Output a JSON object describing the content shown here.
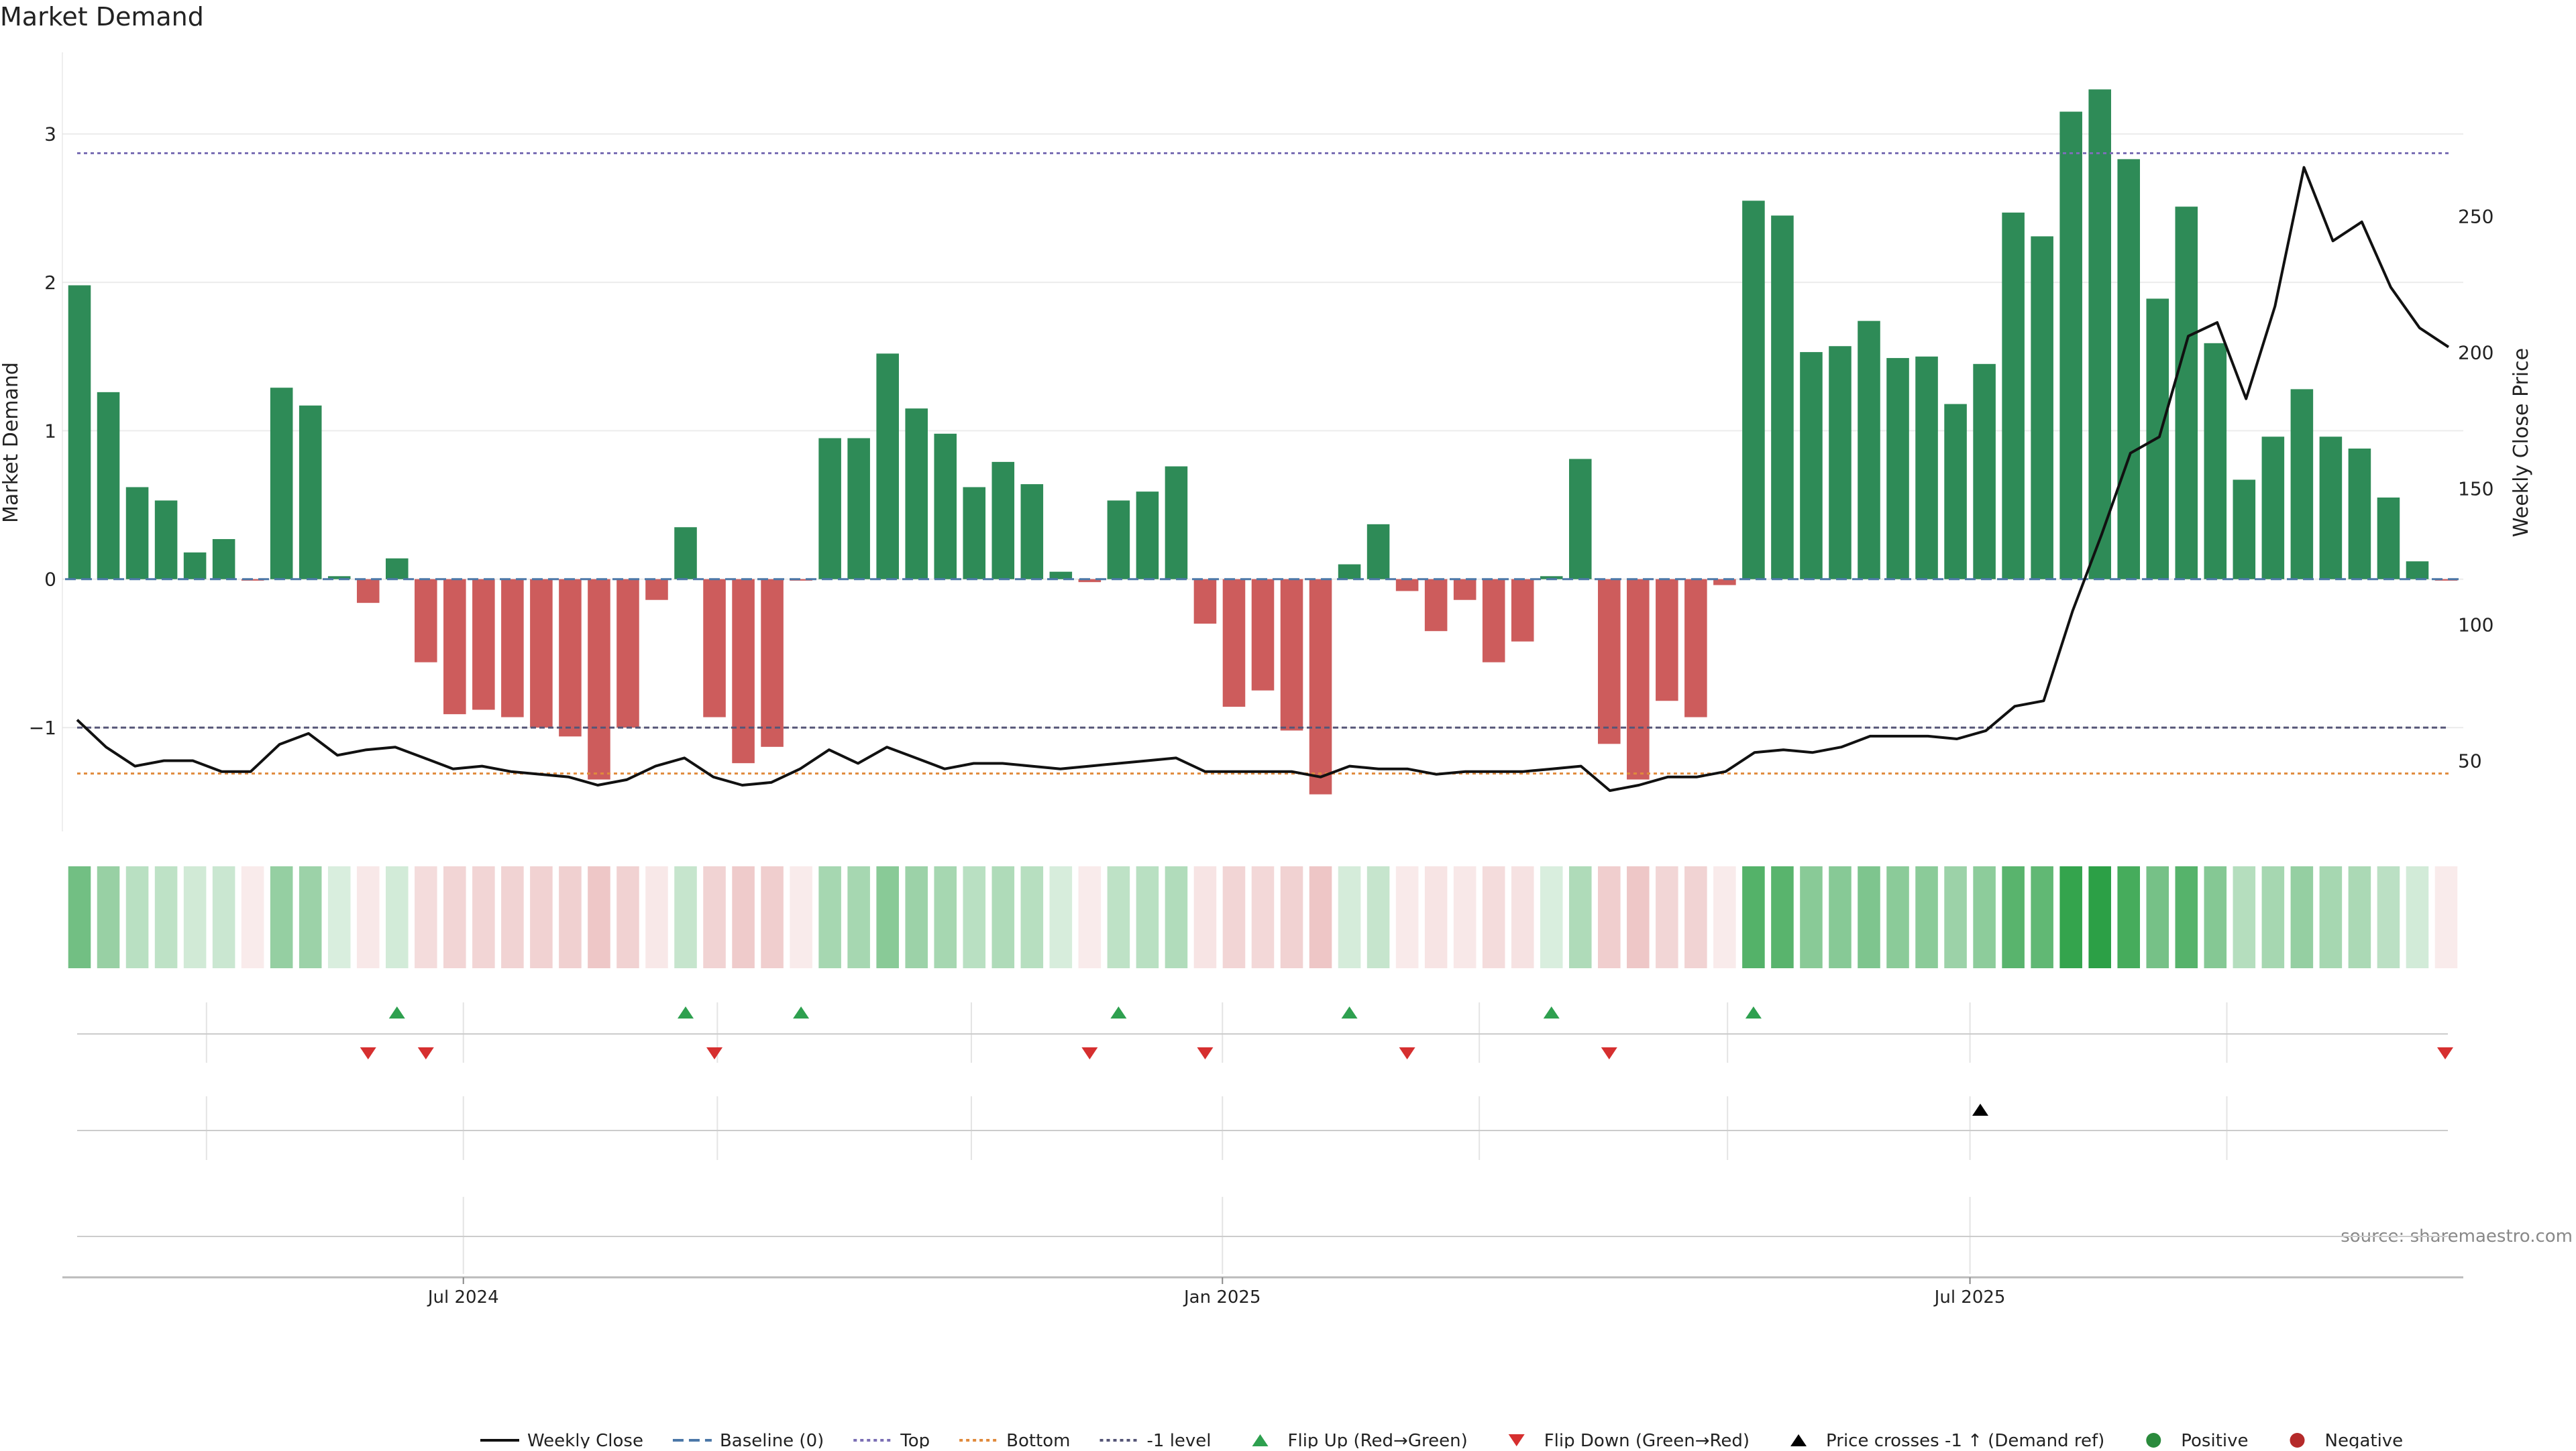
{
  "chart_data": {
    "type": "bar",
    "title": "Market Demand",
    "ylabel": "Market Demand",
    "y2label": "Weekly Close Price",
    "source": "source: sharemaestro.com",
    "ylim": [
      -1.7,
      3.55
    ],
    "y2lim": [
      24.0,
      310.3
    ],
    "yticks": [
      {
        "value": 3,
        "label": "3"
      },
      {
        "value": 2,
        "label": "2"
      },
      {
        "value": 1,
        "label": "1"
      },
      {
        "value": 0,
        "label": "0"
      },
      {
        "value": -1,
        "label": "−1"
      }
    ],
    "y2ticks": [
      {
        "value": 250,
        "label": "250"
      },
      {
        "value": 200,
        "label": "200"
      },
      {
        "value": 150,
        "label": "150"
      },
      {
        "value": 100,
        "label": "100"
      },
      {
        "value": 50,
        "label": "50"
      }
    ],
    "xticks": [
      {
        "index": 13.3,
        "label": "Jul 2024"
      },
      {
        "index": 39.6,
        "label": "Jan 2025"
      },
      {
        "index": 65.5,
        "label": "Jul 2025"
      }
    ],
    "reference_lines": {
      "baseline": 0,
      "top": 2.87,
      "bottom": -1.31,
      "minus_one": -1
    },
    "demand": [
      1.98,
      1.26,
      0.62,
      0.53,
      0.18,
      0.27,
      -0.01,
      1.29,
      1.17,
      0.02,
      -0.16,
      0.14,
      -0.56,
      -0.91,
      -0.88,
      -0.93,
      -1.0,
      -1.06,
      -1.35,
      -1.0,
      -0.14,
      0.35,
      -0.93,
      -1.24,
      -1.13,
      -0.01,
      0.95,
      0.95,
      1.52,
      1.15,
      0.98,
      0.62,
      0.79,
      0.64,
      0.05,
      -0.02,
      0.53,
      0.59,
      0.76,
      -0.3,
      -0.86,
      -0.75,
      -1.02,
      -1.45,
      0.1,
      0.37,
      -0.08,
      -0.35,
      -0.14,
      -0.56,
      -0.42,
      0.02,
      0.81,
      -1.11,
      -1.35,
      -0.82,
      -0.93,
      -0.04,
      2.55,
      2.45,
      1.53,
      1.57,
      1.74,
      1.49,
      1.5,
      1.18,
      1.45,
      2.47,
      2.31,
      3.15,
      3.3,
      2.83,
      1.89,
      2.51,
      1.59,
      0.67,
      0.96,
      1.28,
      0.96,
      0.88,
      0.55,
      0.12,
      -0.01
    ],
    "price": [
      65,
      55,
      48,
      50,
      50,
      46,
      46,
      56,
      60,
      52,
      54,
      55,
      51,
      47,
      48,
      46,
      45,
      44,
      41,
      43,
      48,
      51,
      44,
      41,
      42,
      47,
      54,
      49,
      55,
      51,
      47,
      49,
      49,
      48,
      47,
      48,
      49,
      50,
      51,
      46,
      46,
      46,
      46,
      44,
      48,
      47,
      47,
      45,
      46,
      46,
      46,
      47,
      48,
      39,
      41,
      44,
      44,
      46,
      53,
      54,
      53,
      55,
      59,
      59,
      59,
      58,
      61,
      70,
      72,
      105,
      133,
      163,
      169,
      206,
      211,
      183,
      217,
      268,
      241,
      248,
      224,
      209,
      202
    ],
    "flip_up_idx": [
      11,
      21,
      25,
      36,
      44,
      51,
      58
    ],
    "flip_down_idx": [
      10,
      12,
      22,
      35,
      39,
      46,
      53,
      82
    ],
    "price_cross_idx": [
      66
    ],
    "legend": [
      {
        "key": "weekly_close",
        "label": "Weekly Close",
        "color": "#111111"
      },
      {
        "key": "baseline",
        "label": "Baseline (0)",
        "color": "#4c78a8"
      },
      {
        "key": "top",
        "label": "Top",
        "color": "#7b6fb5"
      },
      {
        "key": "bottom",
        "label": "Bottom",
        "color": "#e08a3c"
      },
      {
        "key": "minus_one",
        "label": "-1 level",
        "color": "#555577"
      },
      {
        "key": "flip_up",
        "label": "Flip Up (Red→Green)",
        "color": "#2ea04f"
      },
      {
        "key": "flip_down",
        "label": "Flip Down (Green→Red)",
        "color": "#d62f2f"
      },
      {
        "key": "price_cross",
        "label": "Price crosses -1 ↑ (Demand ref)",
        "color": "#000000"
      },
      {
        "key": "positive",
        "label": "Positive",
        "color": "#2a8a3c"
      },
      {
        "key": "negative",
        "label": "Negative",
        "color": "#b52a2a"
      }
    ],
    "colors": {
      "positive_bar": "#2e8b57",
      "negative_bar": "#cd5c5c",
      "grid": "#e6e6e6",
      "axis": "#cccccc",
      "text": "#222222"
    }
  }
}
